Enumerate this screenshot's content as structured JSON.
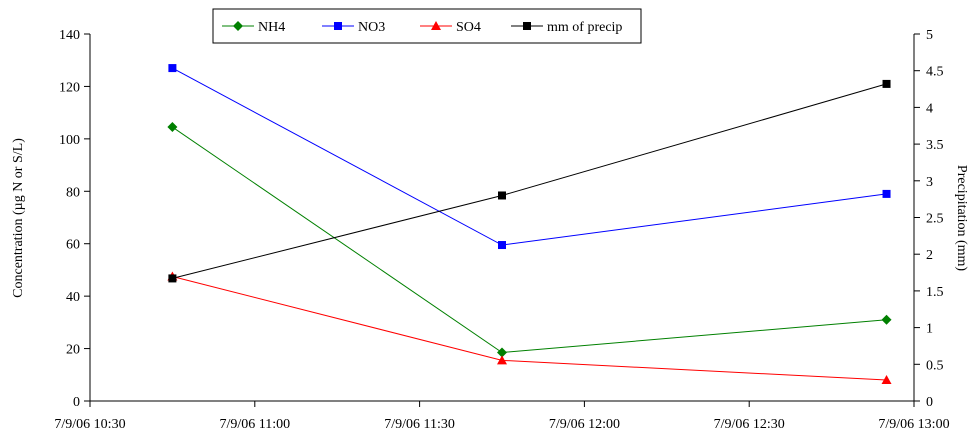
{
  "chart_data": {
    "type": "line",
    "title": "",
    "x_axis": {
      "label": "",
      "range": [
        "7/9/06 10:30",
        "7/9/06 13:00"
      ],
      "ticks": [
        "7/9/06 10:30",
        "7/9/06 11:00",
        "7/9/06 11:30",
        "7/9/06 12:00",
        "7/9/06 12:30",
        "7/9/06 13:00"
      ]
    },
    "y_axis_left": {
      "label": "Concentration (µg N or S/L)",
      "range": [
        0,
        140
      ],
      "ticks": [
        "0",
        "20",
        "40",
        "60",
        "80",
        "100",
        "120",
        "140"
      ]
    },
    "y_axis_right": {
      "label": "Precipitation (mm)",
      "range": [
        0,
        5
      ],
      "ticks": [
        "0",
        "0.5",
        "1",
        "1.5",
        "2",
        "2.5",
        "3",
        "3.5",
        "4",
        "4.5",
        "5"
      ]
    },
    "grid": false,
    "legend_position": "top",
    "x": [
      "7/9/06 10:45",
      "7/9/06 11:45",
      "7/9/06 12:55"
    ],
    "series": [
      {
        "name": "NH4",
        "axis": "left",
        "color": "#008000",
        "marker": "diamond",
        "values": [
          104.5,
          18.5,
          31
        ]
      },
      {
        "name": "NO3",
        "axis": "left",
        "color": "#0000ff",
        "marker": "square",
        "values": [
          127,
          59.5,
          79
        ]
      },
      {
        "name": "SO4",
        "axis": "left",
        "color": "#ff0000",
        "marker": "triangle",
        "values": [
          47.5,
          15.5,
          8
        ]
      },
      {
        "name": "mm of precip",
        "axis": "right",
        "color": "#000000",
        "marker": "square",
        "values": [
          1.67,
          2.8,
          4.32
        ]
      }
    ]
  }
}
